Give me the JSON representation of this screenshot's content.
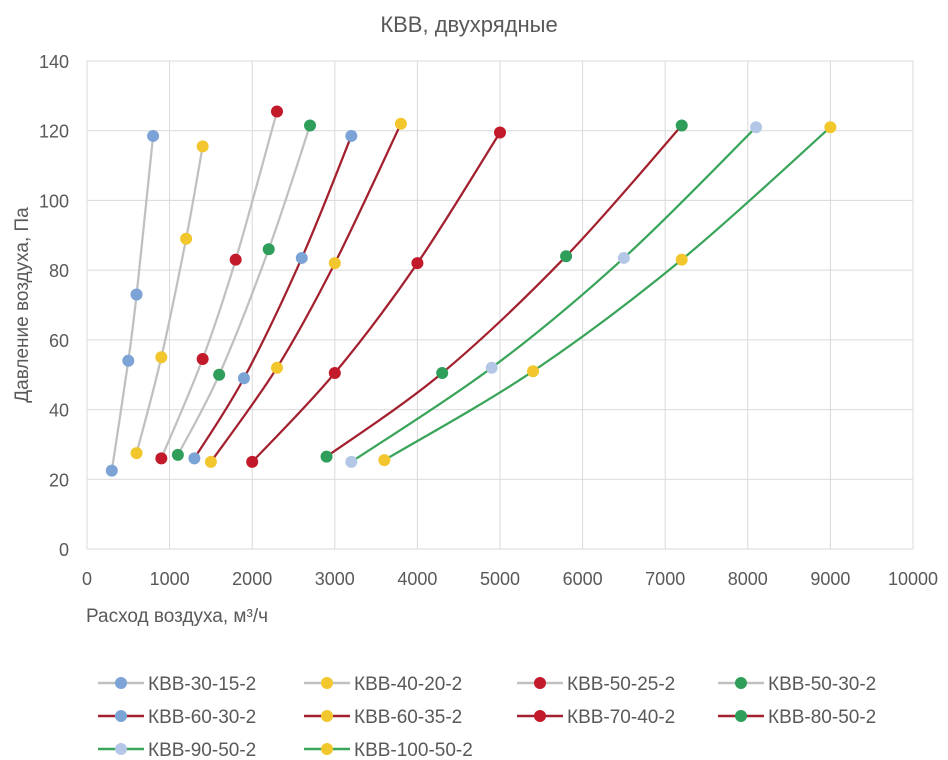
{
  "chart_data": {
    "type": "line",
    "title": "КВВ, двухрядные",
    "xlabel": "Расход воздуха, м³/ч",
    "ylabel": "Давление  воздуха, Па",
    "xlim": [
      0,
      10000
    ],
    "ylim": [
      0,
      140
    ],
    "x_ticks": [
      "0",
      "1000",
      "2000",
      "3000",
      "4000",
      "5000",
      "6000",
      "7000",
      "8000",
      "9000",
      "10000"
    ],
    "y_ticks": [
      "0",
      "20",
      "40",
      "60",
      "80",
      "100",
      "120",
      "140"
    ],
    "grid": "on",
    "legend_position": "bottom",
    "series": [
      {
        "name": "КВВ-30-15-2",
        "line_color": "#c0c0c0",
        "marker_color": "#7ba3d6",
        "points": [
          [
            300,
            22.5
          ],
          [
            500,
            54
          ],
          [
            600,
            73
          ],
          [
            800,
            118.5
          ]
        ]
      },
      {
        "name": "КВВ-40-20-2",
        "line_color": "#c0c0c0",
        "marker_color": "#f2c72e",
        "points": [
          [
            600,
            27.5
          ],
          [
            900,
            55
          ],
          [
            1200,
            89
          ],
          [
            1400,
            115.5
          ]
        ]
      },
      {
        "name": "КВВ-50-25-2",
        "line_color": "#c0c0c0",
        "marker_color": "#c21a2b",
        "points": [
          [
            900,
            26
          ],
          [
            1400,
            54.5
          ],
          [
            1800,
            83
          ],
          [
            2300,
            125.5
          ]
        ]
      },
      {
        "name": "КВВ-50-30-2",
        "line_color": "#c0c0c0",
        "marker_color": "#2e9e5a",
        "points": [
          [
            1100,
            27
          ],
          [
            1600,
            50
          ],
          [
            2200,
            86
          ],
          [
            2700,
            121.5
          ]
        ]
      },
      {
        "name": "КВВ-60-30-2",
        "line_color": "#a3202e",
        "marker_color": "#7ba3d6",
        "points": [
          [
            1300,
            26
          ],
          [
            1900,
            49
          ],
          [
            2600,
            83.5
          ],
          [
            3200,
            118.5
          ]
        ]
      },
      {
        "name": "КВВ-60-35-2",
        "line_color": "#a3202e",
        "marker_color": "#f2c72e",
        "points": [
          [
            1500,
            25
          ],
          [
            2300,
            52
          ],
          [
            3000,
            82
          ],
          [
            3800,
            122
          ]
        ]
      },
      {
        "name": "КВВ-70-40-2",
        "line_color": "#a3202e",
        "marker_color": "#c21a2b",
        "points": [
          [
            2000,
            25
          ],
          [
            3000,
            50.5
          ],
          [
            4000,
            82
          ],
          [
            5000,
            119.5
          ]
        ]
      },
      {
        "name": "КВВ-80-50-2",
        "line_color": "#a3202e",
        "marker_color": "#2e9e5a",
        "points": [
          [
            2900,
            26.5
          ],
          [
            4300,
            50.5
          ],
          [
            5800,
            84
          ],
          [
            7200,
            121.5
          ]
        ]
      },
      {
        "name": "КВВ-90-50-2",
        "line_color": "#3aa55a",
        "marker_color": "#b4c7e7",
        "points": [
          [
            3200,
            25
          ],
          [
            4900,
            52
          ],
          [
            6500,
            83.5
          ],
          [
            8100,
            121
          ]
        ]
      },
      {
        "name": "КВВ-100-50-2",
        "line_color": "#3aa55a",
        "marker_color": "#f2c72e",
        "points": [
          [
            3600,
            25.5
          ],
          [
            5400,
            51
          ],
          [
            7200,
            83
          ],
          [
            9000,
            121
          ]
        ]
      }
    ]
  }
}
